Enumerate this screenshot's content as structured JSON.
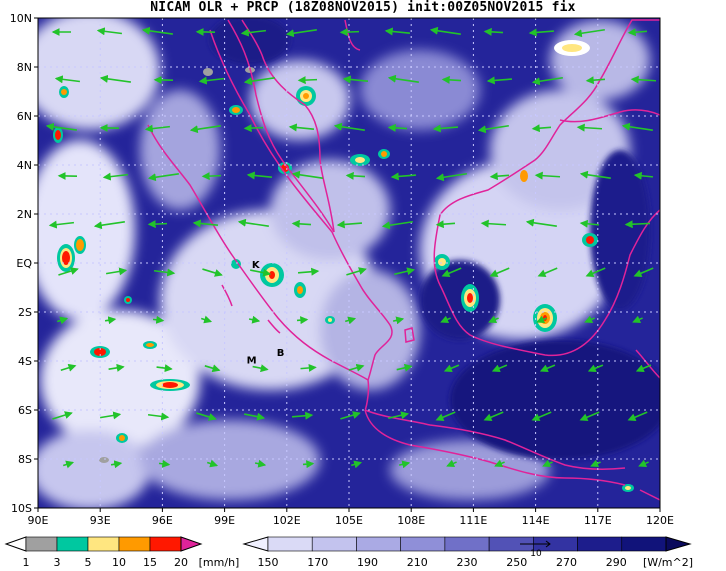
{
  "title": "NICAM OLR + PRCP (18Z08NOV2015) init:00Z05NOV2015 fix",
  "map": {
    "lon_range": [
      90,
      120
    ],
    "lat_range": [
      -10,
      10
    ],
    "x_ticks": [
      "90E",
      "93E",
      "96E",
      "99E",
      "102E",
      "105E",
      "108E",
      "111E",
      "114E",
      "117E",
      "120E"
    ],
    "y_ticks": [
      "10N",
      "8N",
      "6N",
      "4N",
      "2N",
      "EQ",
      "2S",
      "4S",
      "6S",
      "8S",
      "10S"
    ],
    "colors": {
      "background_deep": "#11137a",
      "coastline": "#e0239a",
      "wind_arrows": "#22c32a",
      "grid": "#c8c8ff"
    },
    "place_markers": [
      {
        "label": "K",
        "lon": 100.5,
        "lat": -0.2
      },
      {
        "label": "M",
        "lon": 100.3,
        "lat": -4.1
      },
      {
        "label": "B",
        "lon": 101.7,
        "lat": -3.8
      }
    ]
  },
  "precip_colorbar": {
    "labels": [
      "1",
      "3",
      "5",
      "10",
      "15",
      "20"
    ],
    "unit": "[mm/h]",
    "colors": [
      "#ffffff",
      "#a0a0a0",
      "#00c8a0",
      "#ffe680",
      "#ff9a00",
      "#ff1800",
      "#e0239a"
    ]
  },
  "olr_colorbar": {
    "labels": [
      "150",
      "170",
      "190",
      "210",
      "230",
      "250",
      "270",
      "290"
    ],
    "unit": "[W/m^2]",
    "colors": [
      "#f0f0ff",
      "#dadaf6",
      "#c3c3ee",
      "#aaaae4",
      "#8f8fd8",
      "#7070c8",
      "#5252b6",
      "#3333a2",
      "#1d1d8c",
      "#11137a",
      "#0a0a5c"
    ],
    "arrow_label": "10"
  }
}
